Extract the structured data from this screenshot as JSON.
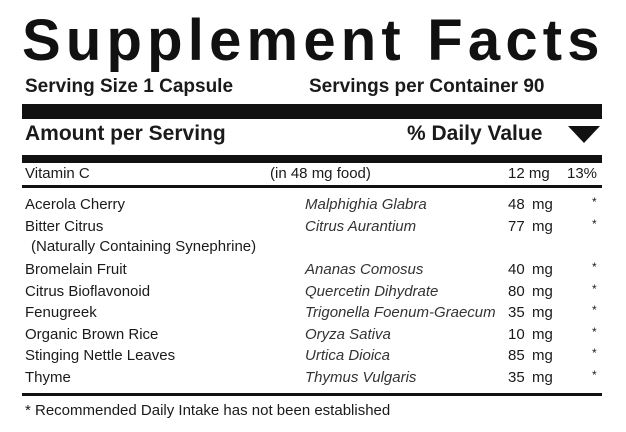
{
  "title": "Supplement Facts",
  "serving_size": "Serving Size 1 Capsule",
  "servings_per_container": "Servings per Container 90",
  "header": {
    "amount": "Amount per Serving",
    "daily_value": "% Daily Value",
    "daily_value_icon": "triangle-down-icon"
  },
  "vitamin": {
    "name": "Vitamin C",
    "note": "(in 48 mg food)",
    "amount": "12 mg",
    "dv": "13%"
  },
  "ingredients": [
    {
      "name": "Acerola Cherry",
      "latin": "Malphighia Glabra",
      "amount": "48",
      "unit": "mg",
      "dv": "*"
    },
    {
      "name": "Bitter Citrus",
      "latin": "Citrus Aurantium",
      "amount": "77",
      "unit": "mg",
      "dv": "*",
      "sub": "(Naturally Containing Synephrine)"
    },
    {
      "name": "Bromelain Fruit",
      "latin": "Ananas Comosus",
      "amount": "40",
      "unit": "mg",
      "dv": "*"
    },
    {
      "name": "Citrus Bioflavonoid",
      "latin": "Quercetin Dihydrate",
      "amount": "80",
      "unit": "mg",
      "dv": "*"
    },
    {
      "name": "Fenugreek",
      "latin": "Trigonella Foenum-Graecum",
      "amount": "35",
      "unit": "mg",
      "dv": "*"
    },
    {
      "name": "Organic Brown Rice",
      "latin": "Oryza Sativa",
      "amount": "10",
      "unit": "mg",
      "dv": "*"
    },
    {
      "name": "Stinging Nettle Leaves",
      "latin": "Urtica Dioica",
      "amount": "85",
      "unit": "mg",
      "dv": "*"
    },
    {
      "name": "Thyme",
      "latin": "Thymus Vulgaris",
      "amount": "35",
      "unit": "mg",
      "dv": "*"
    }
  ],
  "footnote": "* Recommended Daily Intake has not been established"
}
